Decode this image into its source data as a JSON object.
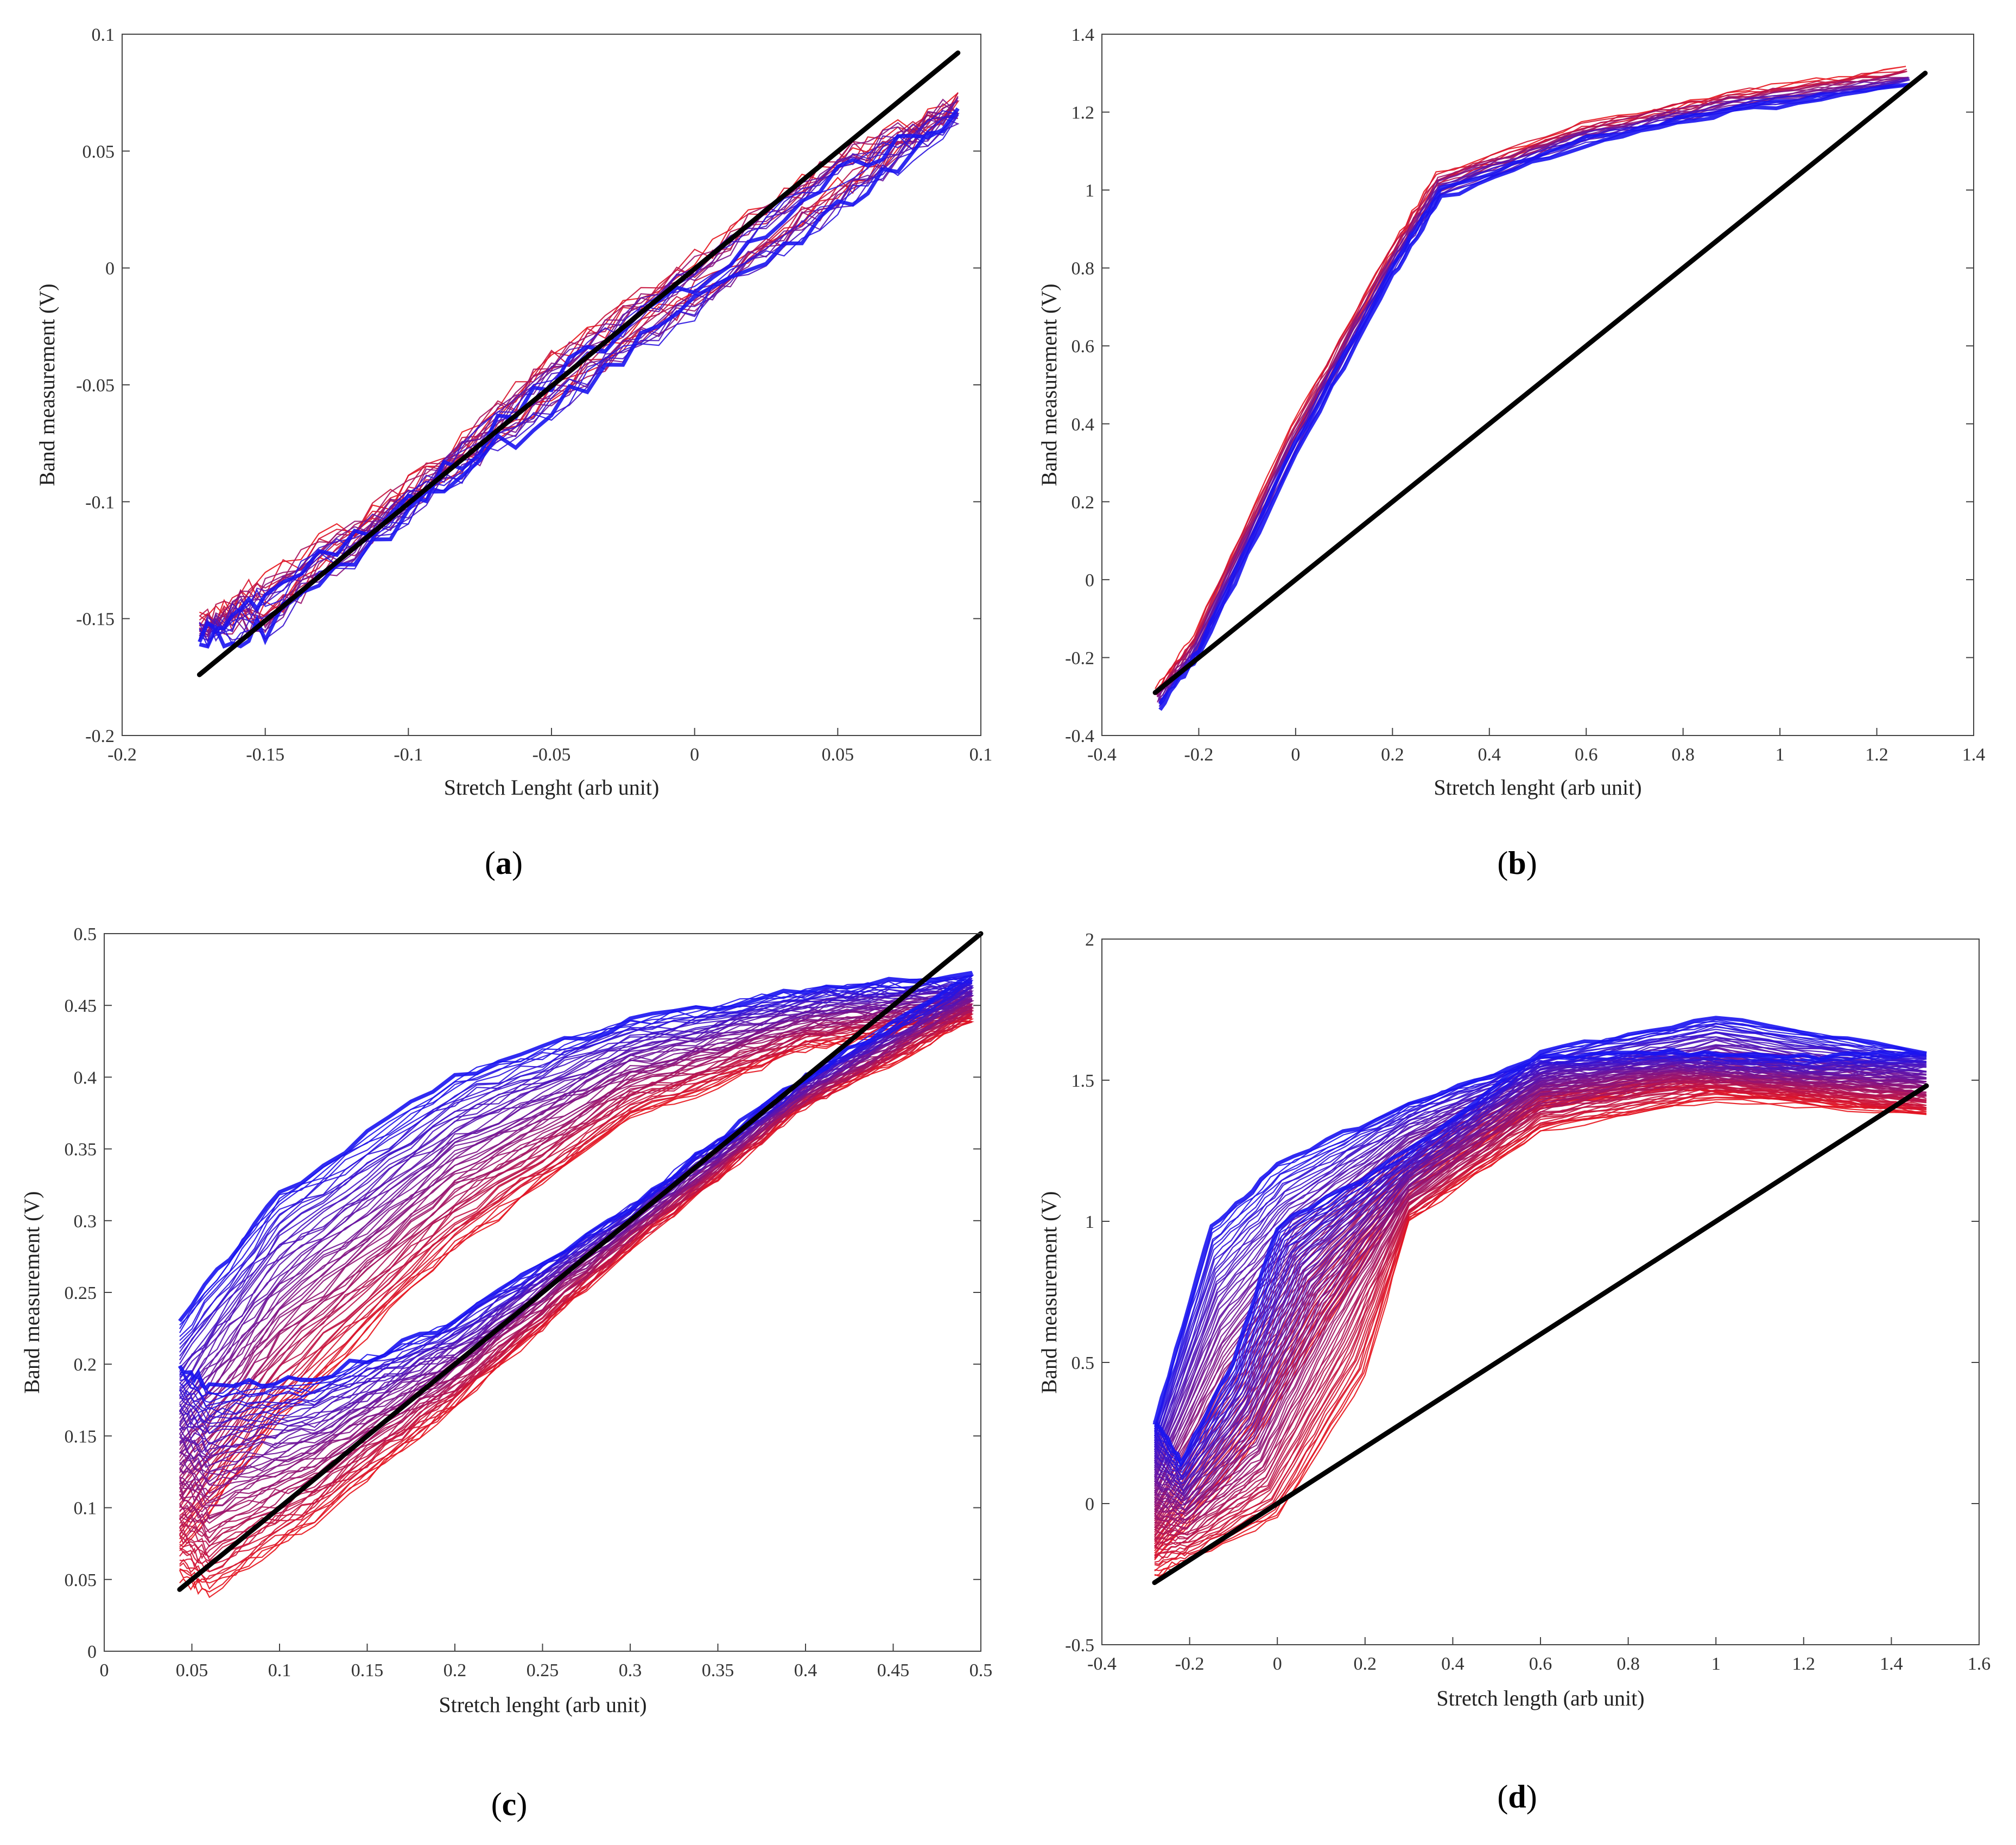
{
  "colors": {
    "start": "#e8141c",
    "end": "#1a14f0",
    "line": "#000000",
    "frame": "#444444"
  },
  "chart_data": [
    {
      "type": "line",
      "panel": "a",
      "xlabel": "Stretch Lenght (arb unit)",
      "ylabel": "Band measurement (V)",
      "xlim": [
        -0.2,
        0.1
      ],
      "ylim": [
        -0.2,
        0.1
      ],
      "xticks": [
        -0.2,
        -0.15,
        -0.1,
        -0.05,
        0,
        0.05,
        0.1
      ],
      "xtick_labels": [
        "-0.2",
        "-0.15",
        "-0.1",
        "-0.05",
        "0",
        "0.05",
        "0.1"
      ],
      "yticks": [
        -0.2,
        -0.15,
        -0.1,
        -0.05,
        0,
        0.05,
        0.1
      ],
      "ytick_labels": [
        "-0.2",
        "-0.15",
        "-0.1",
        "-0.05",
        "0",
        "0.05",
        "0.1"
      ],
      "cycles": 14,
      "loop_points": [
        [
          -0.173,
          -0.158
        ],
        [
          -0.15,
          -0.155
        ],
        [
          -0.1,
          -0.105
        ],
        [
          -0.05,
          -0.06
        ],
        [
          0,
          -0.018
        ],
        [
          0.05,
          0.025
        ],
        [
          0.092,
          0.065
        ],
        [
          0.05,
          0.04
        ],
        [
          0,
          -0.005
        ],
        [
          -0.05,
          -0.048
        ],
        [
          -0.1,
          -0.102
        ],
        [
          -0.15,
          -0.142
        ],
        [
          -0.173,
          -0.16
        ]
      ],
      "loop_shift": [
        0,
        0.008
      ],
      "loop_noise": 0.006,
      "reference_line": [
        [
          -0.173,
          -0.174
        ],
        [
          0.092,
          0.092
        ]
      ],
      "caption": "a"
    },
    {
      "type": "line",
      "panel": "b",
      "xlabel": "Stretch lenght (arb unit)",
      "ylabel": "Band measurement (V)",
      "xlim": [
        -0.4,
        1.4
      ],
      "ylim": [
        -0.4,
        1.4
      ],
      "xticks": [
        -0.4,
        -0.2,
        0,
        0.2,
        0.4,
        0.6,
        0.8,
        1,
        1.2,
        1.4
      ],
      "xtick_labels": [
        "-0.4",
        "-0.2",
        "0",
        "0.2",
        "0.4",
        "0.6",
        "0.8",
        "1",
        "1.2",
        "1.4"
      ],
      "yticks": [
        -0.4,
        -0.2,
        0,
        0.2,
        0.4,
        0.6,
        0.8,
        1,
        1.2,
        1.4
      ],
      "ytick_labels": [
        "-0.4",
        "-0.2",
        "0",
        "0.2",
        "0.4",
        "0.6",
        "0.8",
        "1",
        "1.2",
        "1.4"
      ],
      "cycles": 12,
      "loop_points": [
        [
          -0.28,
          -0.33
        ],
        [
          -0.2,
          -0.18
        ],
        [
          0,
          0.35
        ],
        [
          0.2,
          0.8
        ],
        [
          0.3,
          1.0
        ],
        [
          0.6,
          1.13
        ],
        [
          0.9,
          1.21
        ],
        [
          1.27,
          1.27
        ],
        [
          0.9,
          1.2
        ],
        [
          0.6,
          1.12
        ],
        [
          0.3,
          0.98
        ],
        [
          0.2,
          0.78
        ],
        [
          0,
          0.32
        ],
        [
          -0.2,
          -0.2
        ],
        [
          -0.28,
          -0.32
        ]
      ],
      "loop_shift": [
        -0.02,
        0.04
      ],
      "loop_noise": 0.008,
      "reference_line": [
        [
          -0.29,
          -0.29
        ],
        [
          1.3,
          1.3
        ]
      ],
      "caption": "b"
    },
    {
      "type": "line",
      "panel": "c",
      "xlabel": "Stretch lenght (arb unit)",
      "ylabel": "Band measurement (V)",
      "xlim": [
        0,
        0.5
      ],
      "ylim": [
        0,
        0.5
      ],
      "xticks": [
        0,
        0.05,
        0.1,
        0.15,
        0.2,
        0.25,
        0.3,
        0.35,
        0.4,
        0.45,
        0.5
      ],
      "xtick_labels": [
        "0",
        "0.05",
        "0.1",
        "0.15",
        "0.2",
        "0.25",
        "0.3",
        "0.35",
        "0.4",
        "0.45",
        "0.5"
      ],
      "yticks": [
        0,
        0.05,
        0.1,
        0.15,
        0.2,
        0.25,
        0.3,
        0.35,
        0.4,
        0.45,
        0.5
      ],
      "ytick_labels": [
        "0",
        "0.05",
        "0.1",
        "0.15",
        "0.2",
        "0.25",
        "0.3",
        "0.35",
        "0.4",
        "0.45",
        "0.5"
      ],
      "cycles": 60,
      "loop_start": [
        [
          0.043,
          0.05
        ],
        [
          0.06,
          0.04
        ],
        [
          0.12,
          0.09
        ],
        [
          0.2,
          0.17
        ],
        [
          0.3,
          0.28
        ],
        [
          0.4,
          0.38
        ],
        [
          0.495,
          0.44
        ],
        [
          0.4,
          0.42
        ],
        [
          0.3,
          0.37
        ],
        [
          0.2,
          0.28
        ],
        [
          0.1,
          0.16
        ],
        [
          0.043,
          0.07
        ]
      ],
      "loop_end": [
        [
          0.043,
          0.2
        ],
        [
          0.06,
          0.185
        ],
        [
          0.12,
          0.19
        ],
        [
          0.2,
          0.23
        ],
        [
          0.3,
          0.31
        ],
        [
          0.4,
          0.4
        ],
        [
          0.495,
          0.47
        ],
        [
          0.4,
          0.46
        ],
        [
          0.3,
          0.44
        ],
        [
          0.2,
          0.4
        ],
        [
          0.1,
          0.32
        ],
        [
          0.043,
          0.23
        ]
      ],
      "loop_noise": 0.004,
      "reference_line": [
        [
          0.043,
          0.043
        ],
        [
          0.5,
          0.5
        ]
      ],
      "caption": "c"
    },
    {
      "type": "line",
      "panel": "d",
      "xlabel": "Stretch length (arb unit)",
      "ylabel": "Band measurement (V)",
      "xlim": [
        -0.4,
        1.6
      ],
      "ylim": [
        -0.5,
        2
      ],
      "xticks": [
        -0.4,
        -0.2,
        0,
        0.2,
        0.4,
        0.6,
        0.8,
        1,
        1.2,
        1.4,
        1.6
      ],
      "xtick_labels": [
        "-0.4",
        "-0.2",
        "0",
        "0.2",
        "0.4",
        "0.6",
        "0.8",
        "1",
        "1.2",
        "1.4",
        "1.6"
      ],
      "yticks": [
        -0.5,
        0,
        0.5,
        1,
        1.5,
        2
      ],
      "ytick_labels": [
        "-0.5",
        "0",
        "0.5",
        "1",
        "1.5",
        "2"
      ],
      "cycles": 60,
      "loop_start": [
        [
          -0.28,
          -0.26
        ],
        [
          -0.2,
          -0.2
        ],
        [
          0,
          -0.05
        ],
        [
          0.2,
          0.45
        ],
        [
          0.3,
          1.0
        ],
        [
          0.6,
          1.32
        ],
        [
          1,
          1.43
        ],
        [
          1.48,
          1.38
        ],
        [
          1.2,
          1.43
        ],
        [
          0.9,
          1.47
        ],
        [
          0.6,
          1.4
        ],
        [
          0.3,
          1.1
        ],
        [
          0.1,
          0.6
        ],
        [
          -0.1,
          0.1
        ],
        [
          -0.28,
          -0.2
        ]
      ],
      "loop_end": [
        [
          -0.28,
          0.3
        ],
        [
          -0.22,
          0.15
        ],
        [
          -0.1,
          0.5
        ],
        [
          0,
          0.98
        ],
        [
          0.3,
          1.25
        ],
        [
          0.6,
          1.6
        ],
        [
          1,
          1.72
        ],
        [
          1.48,
          1.6
        ],
        [
          1.2,
          1.58
        ],
        [
          0.9,
          1.6
        ],
        [
          0.6,
          1.58
        ],
        [
          0.3,
          1.42
        ],
        [
          0,
          1.2
        ],
        [
          -0.15,
          0.98
        ],
        [
          -0.28,
          0.28
        ]
      ],
      "loop_noise": 0.01,
      "reference_line": [
        [
          -0.28,
          -0.28
        ],
        [
          1.48,
          1.48
        ]
      ],
      "caption": "d"
    }
  ]
}
